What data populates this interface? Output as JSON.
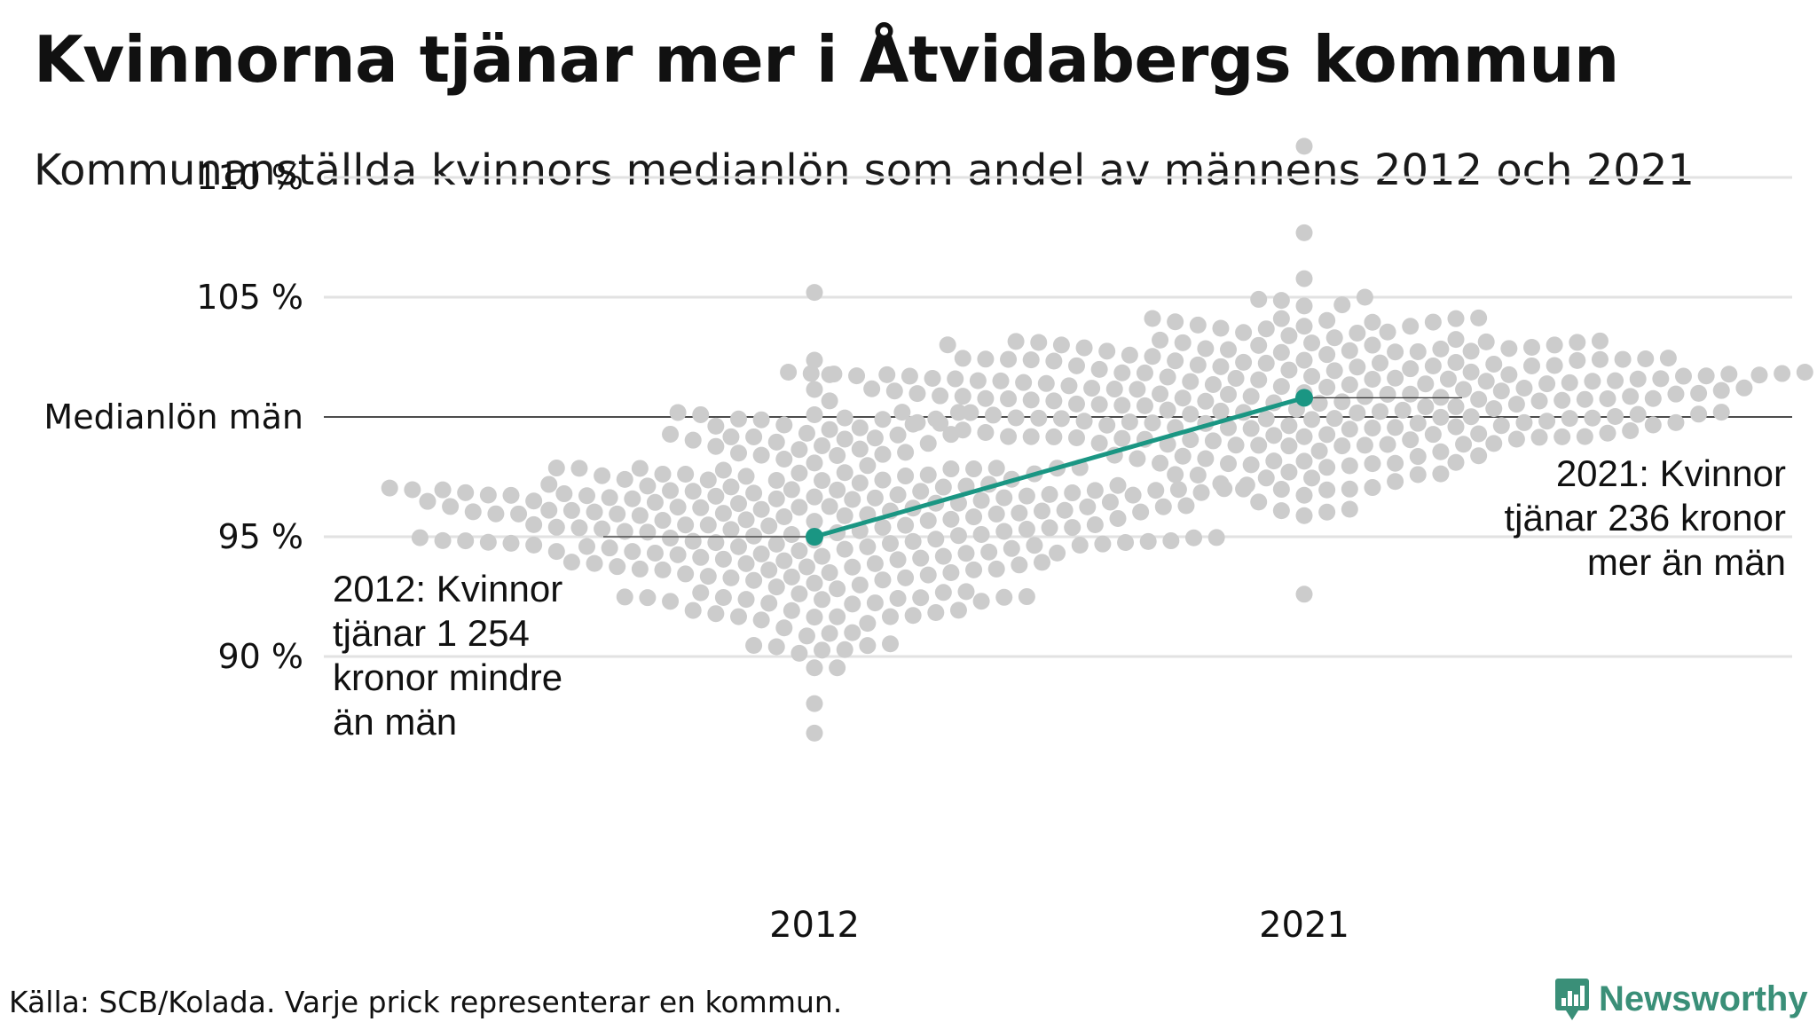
{
  "title": "Kvinnorna tjänar mer i Åtvidabergs kommun",
  "subtitle": "Kommunanställda kvinnors medianlön som andel av männens 2012 och 2021",
  "source": "Källa: SCB/Kolada. Varje prick representerar en kommun.",
  "brand": {
    "name": "Newsworthy",
    "color": "#3a8f78"
  },
  "colors": {
    "dots": "#cccccc",
    "highlight": "#1a9683",
    "grid": "#e2e2e2",
    "reference": "#111111"
  },
  "chart_data": {
    "type": "scatter",
    "categories": [
      "2012",
      "2021"
    ],
    "y_unit": "%",
    "ylim": [
      86,
      111.5
    ],
    "y_ticks": [
      {
        "value": 110,
        "label": "110 %"
      },
      {
        "value": 105,
        "label": "105 %"
      },
      {
        "value": 100,
        "label": "Medianlön män"
      },
      {
        "value": 95,
        "label": "95 %"
      },
      {
        "value": 90,
        "label": "90 %"
      }
    ],
    "reference_line": {
      "value": 100
    },
    "grid": true,
    "distribution": [
      {
        "category": "2012",
        "count": 290,
        "median": 95.5,
        "spread": 2.4,
        "min": 86.8,
        "max": 105.2
      },
      {
        "category": "2021",
        "count": 290,
        "median": 101.0,
        "spread": 1.9,
        "min": 92.6,
        "max": 111.3
      }
    ],
    "highlight": {
      "name": "Åtvidaberg",
      "points": [
        {
          "x": "2012",
          "y": 95.0
        },
        {
          "x": "2021",
          "y": 100.8
        }
      ]
    },
    "annotations": [
      {
        "x": "2012",
        "y": 95.0,
        "lines": [
          "2012: Kvinnor",
          "tjänar 1 254",
          "kronor mindre",
          "än män"
        ]
      },
      {
        "x": "2021",
        "y": 100.8,
        "lines": [
          "2021: Kvinnor",
          "tjänar 236 kronor",
          "mer än män"
        ]
      }
    ]
  }
}
